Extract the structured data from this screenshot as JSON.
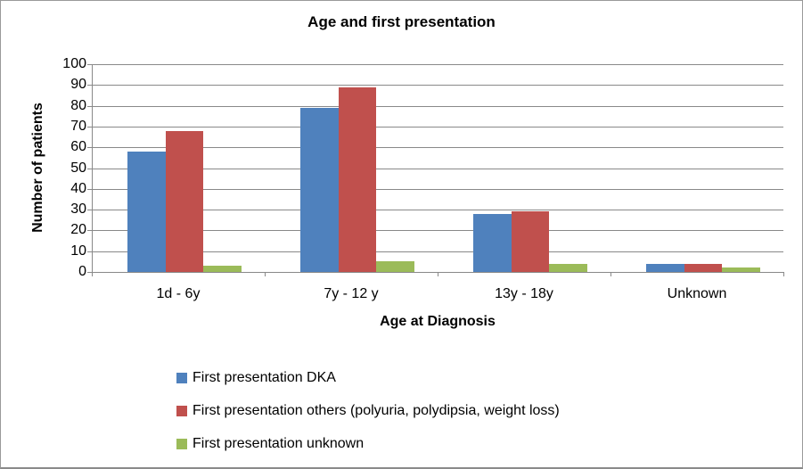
{
  "chart_data": {
    "type": "bar",
    "title": "Age and first presentation",
    "xlabel": "Age at Diagnosis",
    "ylabel": "Number of patients",
    "categories": [
      "1d - 6y",
      "7y - 12 y",
      "13y - 18y",
      "Unknown"
    ],
    "series": [
      {
        "name": "First presentation DKA",
        "color": "#4F81BD",
        "values": [
          58,
          79,
          28,
          4
        ]
      },
      {
        "name": "First presentation others (polyuria, polydipsia, weight loss)",
        "color": "#C0504D",
        "values": [
          68,
          89,
          29,
          4
        ]
      },
      {
        "name": "First presentation unknown",
        "color": "#9BBB59",
        "values": [
          3,
          5,
          4,
          2
        ]
      }
    ],
    "ylim": [
      0,
      100
    ],
    "ytick_step": 10,
    "grid": true,
    "legend_position": "bottom-left",
    "gridline_color": "#898989",
    "axis_color": "#898989"
  }
}
